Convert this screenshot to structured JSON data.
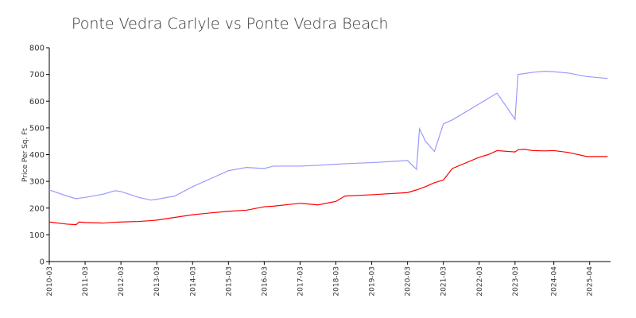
{
  "chart_data": {
    "type": "line",
    "title": "Ponte Vedra Carlyle vs Ponte Vedra Beach",
    "y_label": "Price Per Sq. Ft",
    "x": [
      "2010-03",
      "2010-09",
      "2010-12",
      "2011-01",
      "2011-03",
      "2011-09",
      "2012-01",
      "2012-03",
      "2012-09",
      "2013-01",
      "2013-03",
      "2013-09",
      "2014-03",
      "2014-09",
      "2015-03",
      "2015-09",
      "2016-03",
      "2016-06",
      "2017-03",
      "2017-09",
      "2018-03",
      "2018-06",
      "2019-03",
      "2020-03",
      "2020-06",
      "2020-07",
      "2020-09",
      "2020-12",
      "2021-03",
      "2021-06",
      "2022-03",
      "2022-06",
      "2022-09",
      "2023-03",
      "2023-04",
      "2023-06",
      "2023-09",
      "2024-01",
      "2024-04",
      "2024-09",
      "2025-03",
      "2025-10"
    ],
    "series": [
      {
        "color": "#9999ff",
        "values": [
          268,
          245,
          235,
          237,
          240,
          252,
          265,
          262,
          240,
          230,
          233,
          245,
          280,
          310,
          340,
          352,
          348,
          357,
          357,
          360,
          364,
          366,
          370,
          378,
          345,
          497,
          450,
          412,
          515,
          530,
          590,
          610,
          630,
          532,
          700,
          703,
          708,
          712,
          710,
          705,
          692,
          685
        ]
      },
      {
        "color": "#ff0000",
        "values": [
          148,
          140,
          138,
          148,
          146,
          144,
          147,
          148,
          150,
          153,
          155,
          165,
          175,
          182,
          188,
          192,
          205,
          207,
          218,
          212,
          225,
          245,
          250,
          258,
          268,
          272,
          280,
          295,
          305,
          348,
          390,
          400,
          415,
          410,
          418,
          420,
          415,
          414,
          415,
          408,
          393,
          393
        ]
      }
    ],
    "xlim": [
      "2010-03",
      "2025-11"
    ],
    "xticks": [
      "2010-03",
      "2011-03",
      "2012-03",
      "2013-03",
      "2014-03",
      "2015-03",
      "2016-03",
      "2017-03",
      "2018-03",
      "2019-03",
      "2020-03",
      "2021-03",
      "2022-03",
      "2023-03",
      "2024-04",
      "2025-04"
    ],
    "ylim": [
      0,
      800
    ],
    "yticks": [
      0,
      100,
      200,
      300,
      400,
      500,
      600,
      700,
      800
    ]
  }
}
